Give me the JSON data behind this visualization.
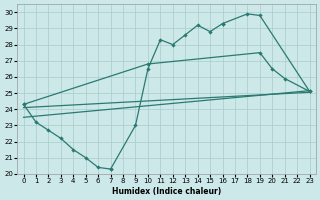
{
  "bg_color": "#cce8e8",
  "grid_color": "#aacccc",
  "line_color": "#2a7a72",
  "xlabel": "Humidex (Indice chaleur)",
  "xlim": [
    -0.5,
    23.5
  ],
  "ylim": [
    20,
    30.5
  ],
  "xticks": [
    0,
    1,
    2,
    3,
    4,
    5,
    6,
    7,
    8,
    9,
    10,
    11,
    12,
    13,
    14,
    15,
    16,
    17,
    18,
    19,
    20,
    21,
    22,
    23
  ],
  "yticks": [
    20,
    21,
    22,
    23,
    24,
    25,
    26,
    27,
    28,
    29,
    30
  ],
  "curve1_segments": [
    {
      "x": [
        0,
        1,
        2,
        3,
        4,
        5,
        6,
        7
      ],
      "y": [
        24.3,
        23.2,
        22.7,
        22.2,
        21.5,
        21.0,
        20.4,
        20.3
      ]
    },
    {
      "x": [
        7,
        9,
        10,
        11,
        12,
        13,
        14,
        15,
        16
      ],
      "y": [
        20.3,
        23.0,
        26.5,
        28.3,
        28.0,
        28.6,
        29.2,
        28.8,
        29.3
      ]
    },
    {
      "x": [
        16,
        18,
        19,
        23
      ],
      "y": [
        29.3,
        29.9,
        29.8,
        25.1
      ]
    }
  ],
  "curve2": {
    "x": [
      0,
      10,
      19,
      20,
      21,
      23
    ],
    "y": [
      24.3,
      26.8,
      27.5,
      26.5,
      25.9,
      25.1
    ]
  },
  "line1": {
    "x": [
      0,
      23
    ],
    "y": [
      23.5,
      25.15
    ]
  },
  "line2": {
    "x": [
      0,
      23
    ],
    "y": [
      24.1,
      25.05
    ]
  }
}
